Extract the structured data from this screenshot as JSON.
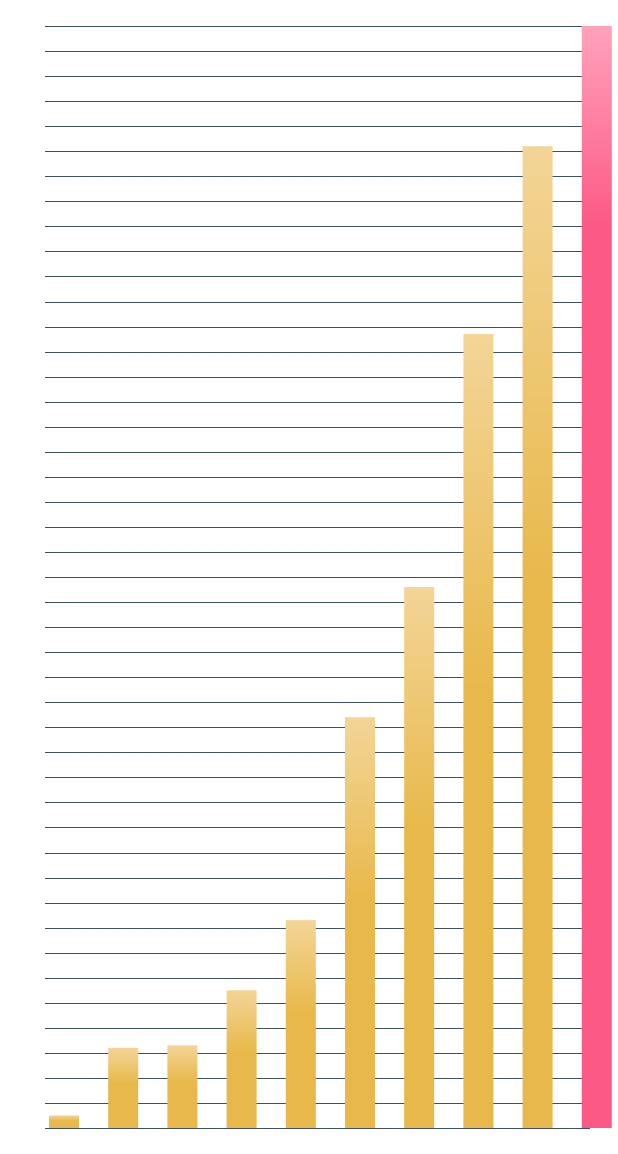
{
  "chart_data": {
    "type": "bar",
    "values": [
      0.5,
      3.2,
      3.3,
      5.5,
      8.3,
      16.4,
      21.6,
      31.7,
      39.2,
      44
    ],
    "colors": [
      "#e8b84a",
      "#e8b84a",
      "#e8b84a",
      "#e8b84a",
      "#e8b84a",
      "#e8b84a",
      "#e8b84a",
      "#e8b84a",
      "#e8b84a",
      "#fc5a86"
    ],
    "ylim": [
      0,
      44
    ],
    "yticks": [
      0,
      1,
      2,
      3,
      4,
      5,
      6,
      7,
      8,
      9,
      10,
      11,
      12,
      13,
      14,
      15,
      16,
      17,
      18,
      19,
      20,
      21,
      22,
      23,
      24,
      25,
      26,
      27,
      28,
      29,
      30,
      31,
      32,
      33,
      34,
      35,
      36,
      37,
      38,
      39,
      40,
      41,
      42,
      43,
      44
    ],
    "grid": true
  }
}
